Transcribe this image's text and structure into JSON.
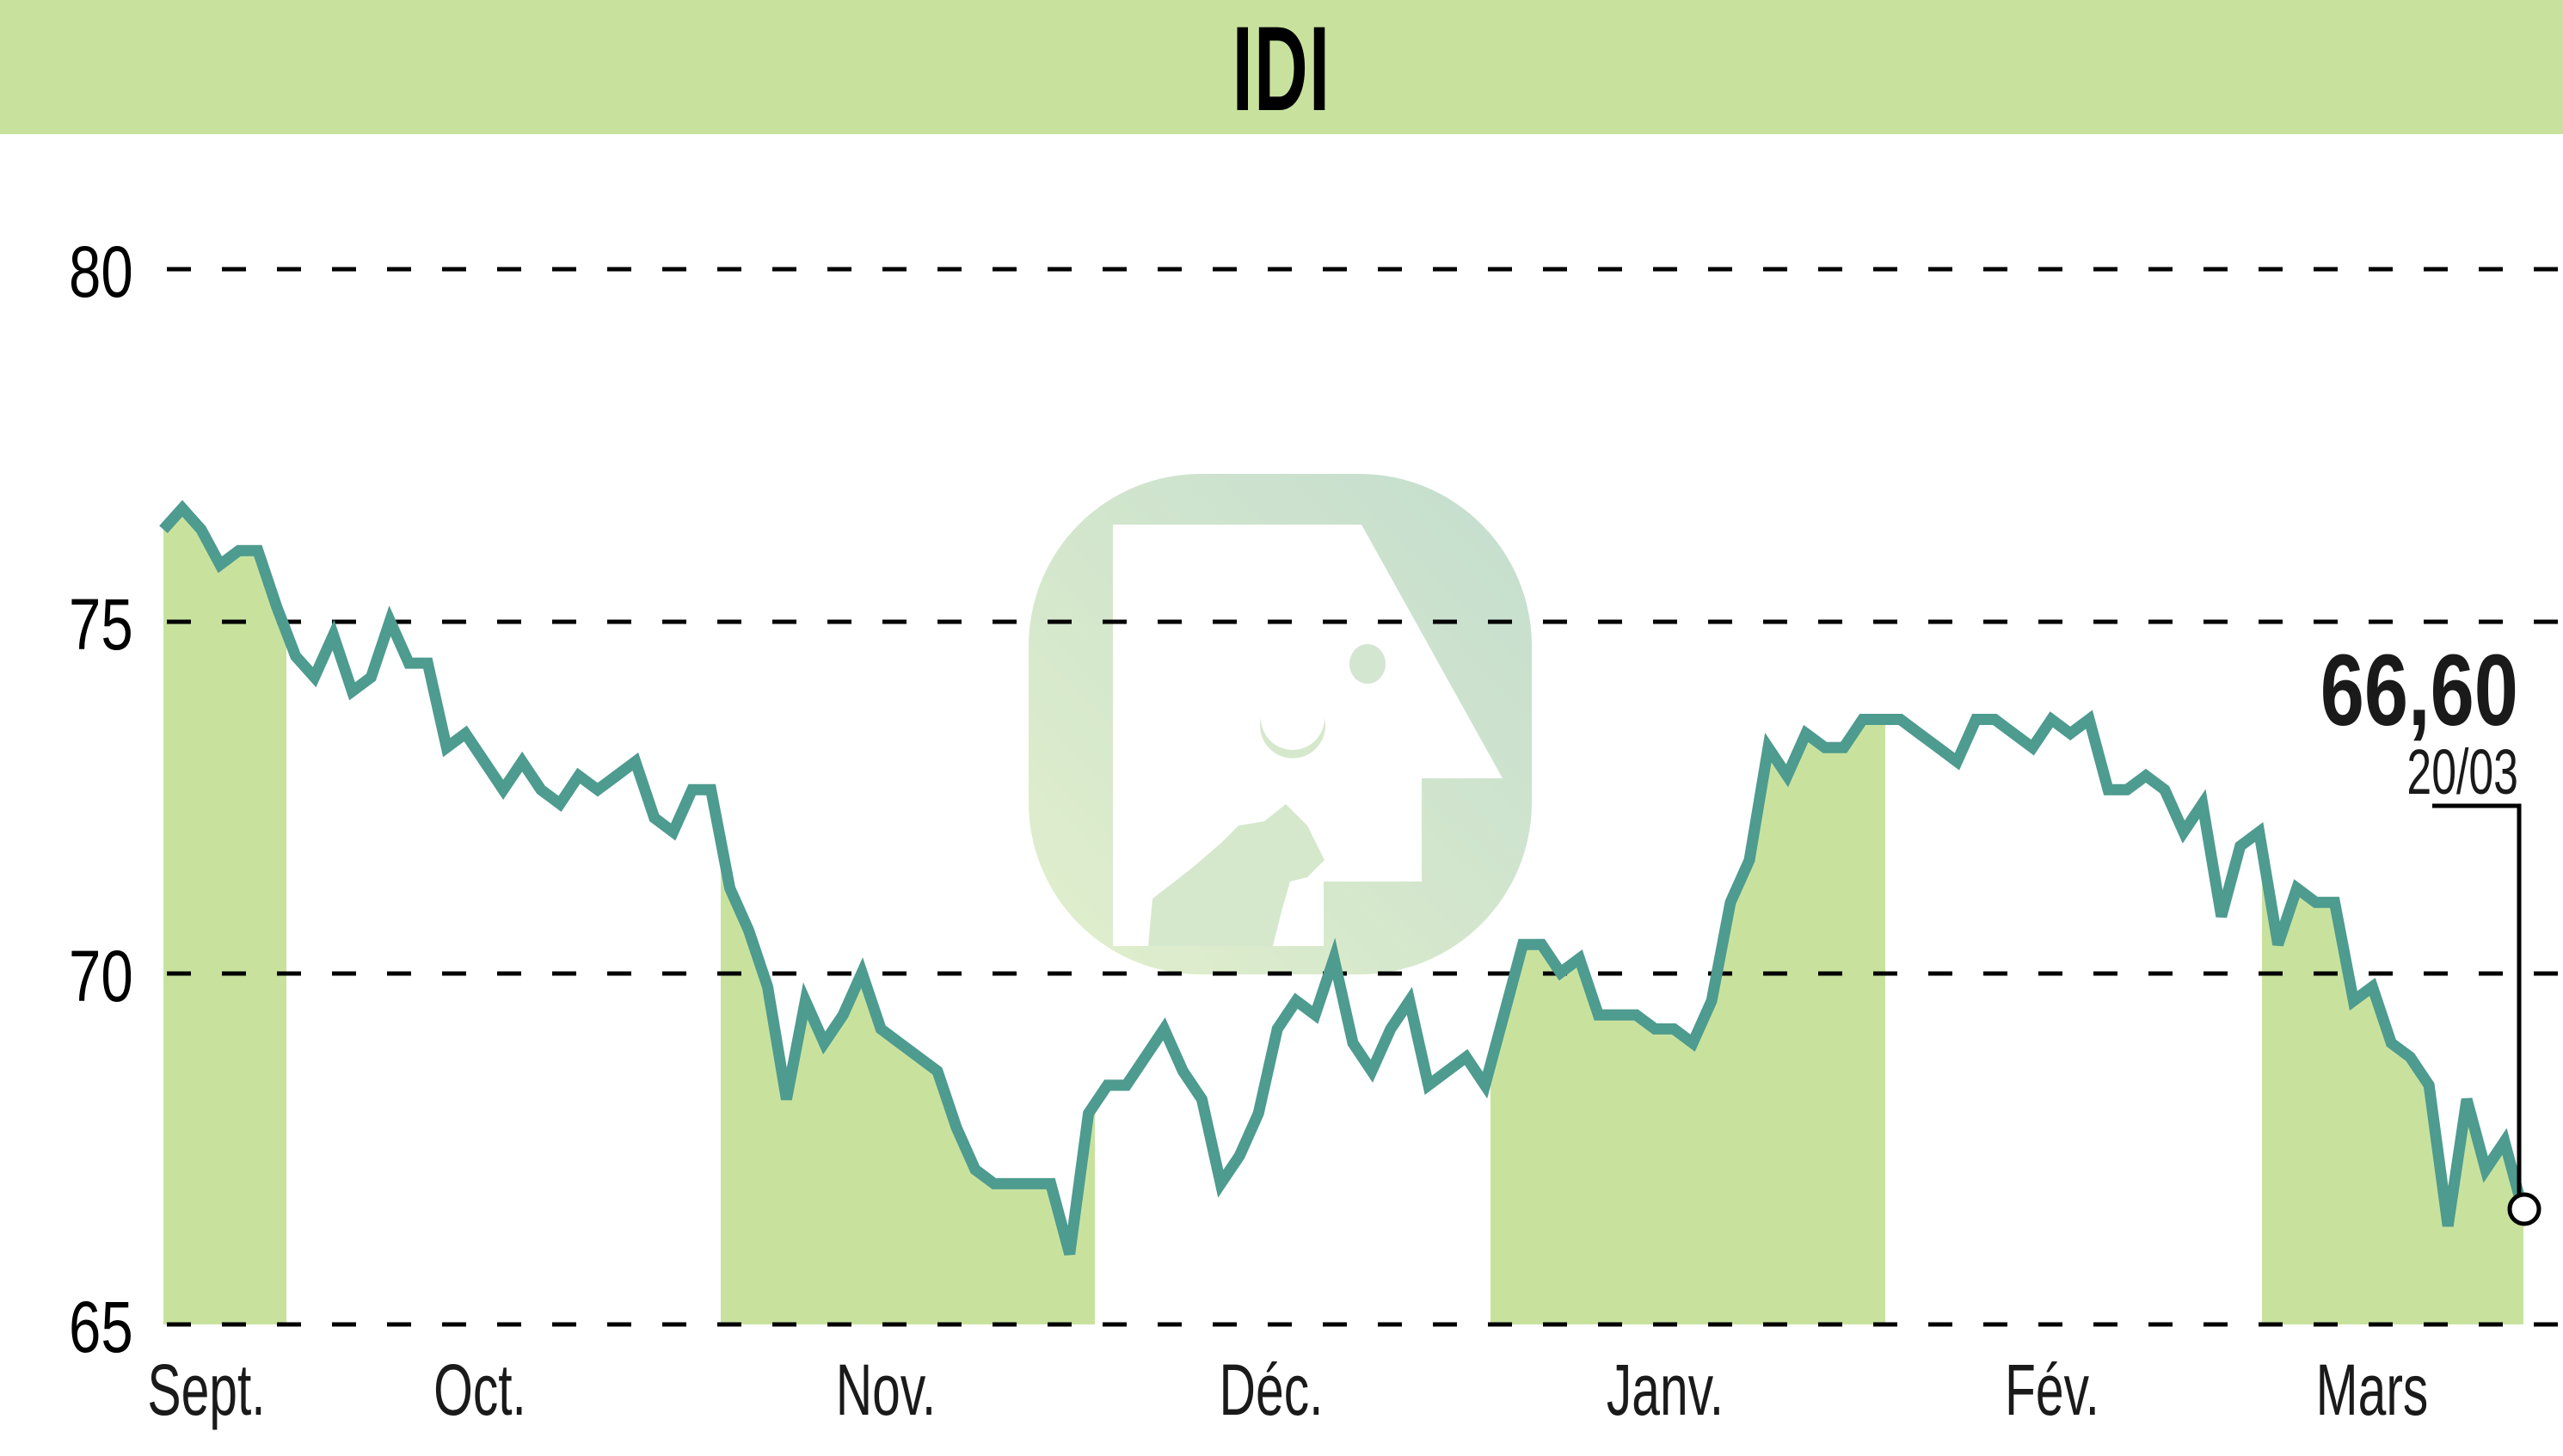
{
  "title": "IDI",
  "colors": {
    "header_bg": "#c8e29e",
    "band_fill": "#c8e29e",
    "line": "#4e9b8f",
    "grid": "#000000",
    "watermark_bg": "#d6e9cc"
  },
  "last_point": {
    "value_label": "66,60",
    "date_label": "20/03"
  },
  "chart_data": {
    "type": "line",
    "title": "IDI",
    "xlabel": "",
    "ylabel": "",
    "ylim": [
      65,
      80
    ],
    "yticks": [
      65,
      70,
      75,
      80
    ],
    "ytick_labels": [
      "65",
      "70",
      "75",
      "80"
    ],
    "grid": {
      "horizontal": true,
      "style": "dashed"
    },
    "legend": null,
    "month_labels": [
      "Sept.",
      "Oct.",
      "Nov.",
      "Déc.",
      "Janv.",
      "Fév.",
      "Mars"
    ],
    "shaded_months": [
      "Sept.",
      "Nov.",
      "Janv.",
      "Mars"
    ],
    "annotation": {
      "value": "66,60",
      "date": "20/03"
    },
    "values": [
      76.3,
      76.6,
      76.3,
      75.8,
      76.0,
      76.0,
      75.2,
      74.5,
      74.2,
      74.8,
      74.0,
      74.2,
      75.0,
      74.4,
      74.4,
      73.2,
      73.4,
      73.0,
      72.6,
      73.0,
      72.6,
      72.4,
      72.8,
      72.6,
      72.8,
      73.0,
      72.2,
      72.0,
      72.6,
      72.6,
      71.2,
      70.6,
      69.8,
      68.2,
      69.6,
      69.0,
      69.4,
      70.0,
      69.2,
      69.0,
      68.8,
      68.6,
      67.8,
      67.2,
      67.0,
      67.0,
      67.0,
      67.0,
      66.0,
      68.0,
      68.4,
      68.4,
      68.8,
      69.2,
      68.6,
      68.2,
      67.0,
      67.4,
      68.0,
      69.2,
      69.6,
      69.4,
      70.2,
      69.0,
      68.6,
      69.2,
      69.6,
      68.4,
      68.6,
      68.8,
      68.4,
      69.4,
      70.4,
      70.4,
      70.0,
      70.2,
      69.4,
      69.4,
      69.4,
      69.2,
      69.2,
      69.0,
      69.6,
      71.0,
      71.6,
      73.2,
      72.8,
      73.4,
      73.2,
      73.2,
      73.6,
      73.6,
      73.6,
      73.4,
      73.2,
      73.0,
      73.6,
      73.6,
      73.4,
      73.2,
      73.6,
      73.4,
      73.6,
      72.6,
      72.6,
      72.8,
      72.6,
      72.0,
      72.4,
      70.8,
      71.8,
      72.0,
      70.4,
      71.2,
      71.0,
      71.0,
      69.6,
      69.8,
      69.0,
      68.8,
      68.4,
      66.4,
      68.2,
      67.2,
      67.6,
      66.6
    ]
  }
}
